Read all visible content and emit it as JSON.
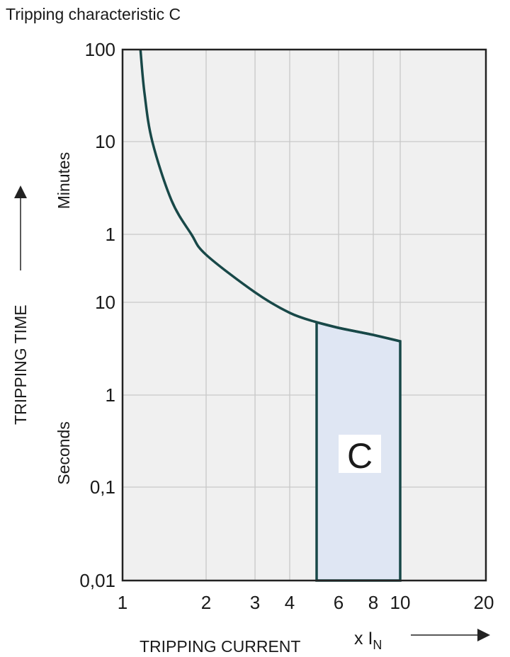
{
  "chart_data": {
    "type": "line",
    "title": "Tripping characteristic C",
    "xlabel": "TRIPPING CURRENT",
    "xunit_prefix": "x I",
    "xunit_sub": "N",
    "ylabel": "TRIPPING TIME",
    "ylabel_minutes": "Minutes",
    "ylabel_seconds": "Seconds",
    "x_scale": "log",
    "y_scale": "log",
    "xlim": [
      1,
      20
    ],
    "ylim_seconds": [
      0.01,
      6000
    ],
    "grid": true,
    "x_ticks": [
      {
        "value": 1,
        "label": "1"
      },
      {
        "value": 2,
        "label": "2"
      },
      {
        "value": 3,
        "label": "3"
      },
      {
        "value": 4,
        "label": "4"
      },
      {
        "value": 6,
        "label": "6"
      },
      {
        "value": 8,
        "label": "8"
      },
      {
        "value": 10,
        "label": "10"
      },
      {
        "value": 20,
        "label": "20"
      }
    ],
    "y_ticks": [
      {
        "seconds": 6000,
        "label": "100"
      },
      {
        "seconds": 600,
        "label": "10"
      },
      {
        "seconds": 60,
        "label": "1"
      },
      {
        "seconds": 10,
        "label": "10"
      },
      {
        "seconds": 1,
        "label": "1"
      },
      {
        "seconds": 0.1,
        "label": "0,1"
      },
      {
        "seconds": 0.01,
        "label": "0,01"
      }
    ],
    "curve": {
      "x": [
        1.16,
        1.2,
        1.28,
        1.5,
        1.77,
        2,
        3,
        4,
        5,
        6,
        8,
        10
      ],
      "y_seconds": [
        6000,
        2000,
        600,
        140,
        60,
        35,
        13,
        7.7,
        6.1,
        5.3,
        4.45,
        3.8
      ]
    },
    "region": {
      "label": "C",
      "x_from": 5,
      "x_to": 10,
      "y_bottom_seconds": 0.01
    },
    "colors": {
      "curve": "#184848",
      "region_fill": "#dfe6f3",
      "plot_bg": "#f0f0f0",
      "grid": "#c8c8c8"
    }
  }
}
